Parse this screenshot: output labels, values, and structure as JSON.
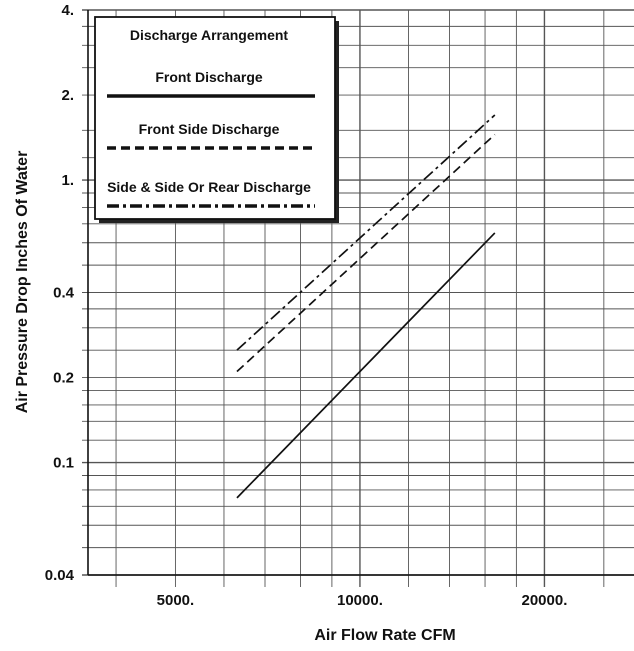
{
  "chart_data": {
    "type": "line",
    "xlabel": "Air Flow Rate CFM",
    "ylabel": "Air Pressure Drop Inches Of Water",
    "x_scale": "log",
    "y_scale": "log",
    "xlim": [
      3600,
      28000
    ],
    "ylim": [
      0.04,
      4
    ],
    "x_tick_labels": [
      "5000.",
      "10000.",
      "20000."
    ],
    "x_tick_values": [
      5000,
      10000,
      20000
    ],
    "y_tick_labels": [
      "4.",
      "2.",
      "1.",
      "0.4",
      "0.2",
      "0.1",
      "0.04"
    ],
    "grid": true,
    "legend_title": "Discharge Arrangement",
    "legend_position": "top-left",
    "series": [
      {
        "name": "Front Discharge",
        "style": "solid",
        "x": [
          6300,
          16600
        ],
        "y": [
          0.075,
          0.65
        ]
      },
      {
        "name": "Front Side Discharge",
        "style": "dashed",
        "x": [
          6300,
          16600
        ],
        "y": [
          0.21,
          1.45
        ]
      },
      {
        "name": "Side & Side Or Rear Discharge",
        "style": "dashdot",
        "x": [
          6300,
          16600
        ],
        "y": [
          0.25,
          1.7
        ]
      }
    ]
  }
}
